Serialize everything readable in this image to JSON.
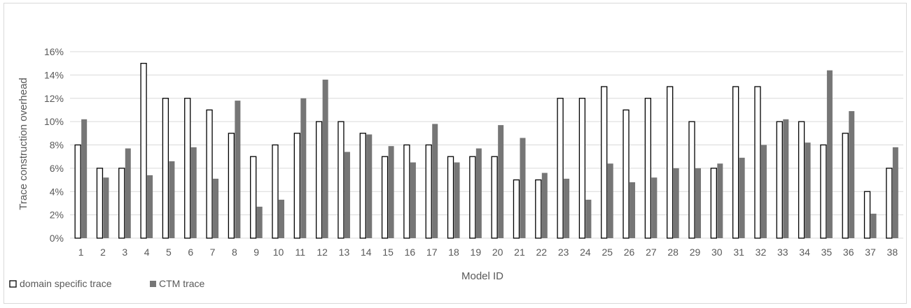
{
  "chart_data": {
    "type": "bar",
    "title": "",
    "xlabel": "Model ID",
    "ylabel": "Trace construction overhead",
    "ylim": [
      0,
      16
    ],
    "yticks": [
      "0%",
      "2%",
      "4%",
      "6%",
      "8%",
      "10%",
      "12%",
      "14%",
      "16%"
    ],
    "grid": true,
    "legend_position": "bottom-left",
    "categories": [
      "1",
      "2",
      "3",
      "4",
      "5",
      "6",
      "7",
      "8",
      "9",
      "10",
      "11",
      "12",
      "13",
      "14",
      "15",
      "16",
      "17",
      "18",
      "19",
      "20",
      "21",
      "22",
      "23",
      "24",
      "25",
      "26",
      "27",
      "28",
      "29",
      "30",
      "31",
      "32",
      "33",
      "34",
      "35",
      "36",
      "37",
      "38"
    ],
    "series": [
      {
        "name": "domain specific trace",
        "fill": "#ffffff",
        "stroke": "#000000",
        "values": [
          8,
          6,
          6,
          15,
          12,
          12,
          11,
          9,
          7,
          8,
          9,
          10,
          10,
          9,
          7,
          8,
          8,
          7,
          7,
          7,
          5,
          5,
          12,
          12,
          13,
          11,
          12,
          13,
          10,
          6,
          13,
          13,
          10,
          10,
          8,
          9,
          4,
          6
        ]
      },
      {
        "name": "CTM trace",
        "fill": "#767676",
        "stroke": "none",
        "values": [
          10.2,
          5.2,
          7.7,
          5.4,
          6.6,
          7.8,
          5.1,
          11.8,
          2.7,
          3.3,
          12.0,
          13.6,
          7.4,
          8.9,
          7.9,
          6.5,
          9.8,
          6.5,
          7.7,
          9.7,
          8.6,
          5.6,
          5.1,
          3.3,
          6.4,
          4.8,
          5.2,
          6.0,
          6.0,
          6.4,
          6.9,
          8.0,
          10.2,
          8.2,
          14.4,
          10.9,
          2.1,
          7.8
        ]
      }
    ]
  }
}
